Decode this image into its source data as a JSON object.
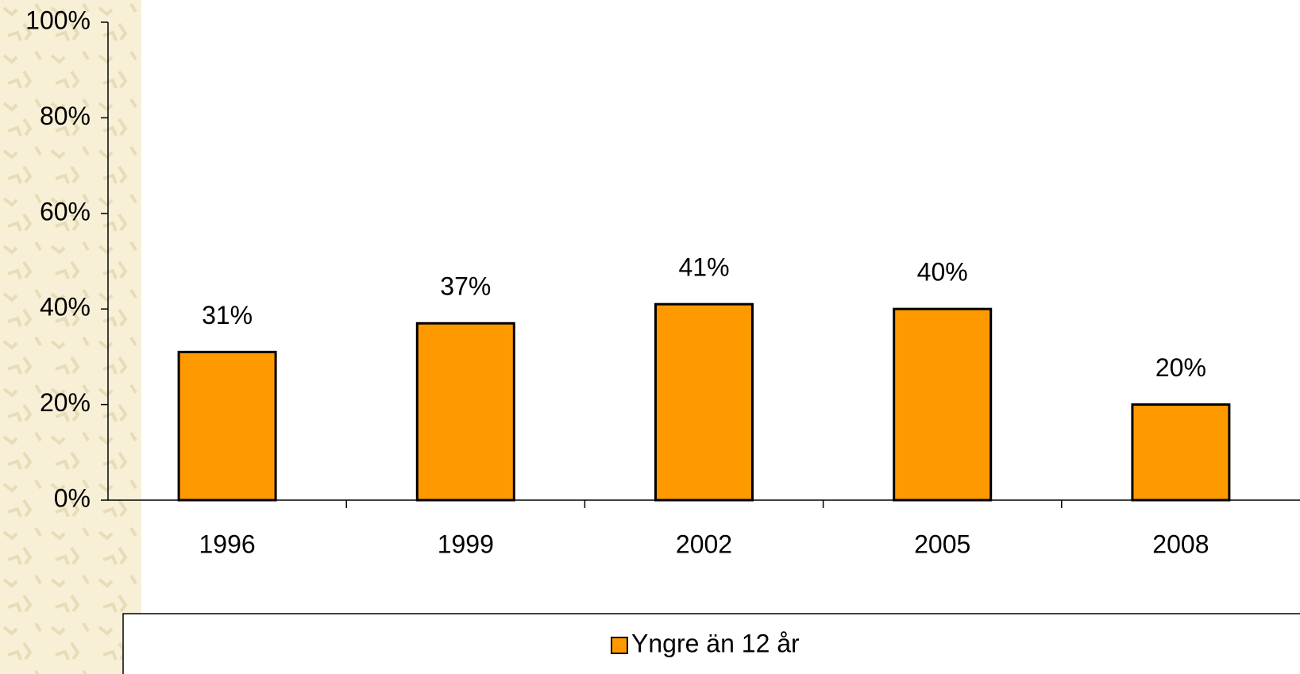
{
  "chart_data": {
    "type": "bar",
    "categories": [
      "1996",
      "1999",
      "2002",
      "2005",
      "2008"
    ],
    "series": [
      {
        "name": "Yngre än 12 år",
        "color": "#ff9900",
        "values": [
          31,
          37,
          41,
          40,
          20
        ],
        "value_labels": [
          "31%",
          "37%",
          "41%",
          "40%",
          "20%"
        ]
      }
    ],
    "ylim": [
      0,
      100
    ],
    "yticks": [
      {
        "value": 0,
        "label": "0%"
      },
      {
        "value": 20,
        "label": "20%"
      },
      {
        "value": 40,
        "label": "40%"
      },
      {
        "value": 60,
        "label": "60%"
      },
      {
        "value": 80,
        "label": "80%"
      },
      {
        "value": 100,
        "label": "100%"
      }
    ],
    "legend": "bottom"
  }
}
